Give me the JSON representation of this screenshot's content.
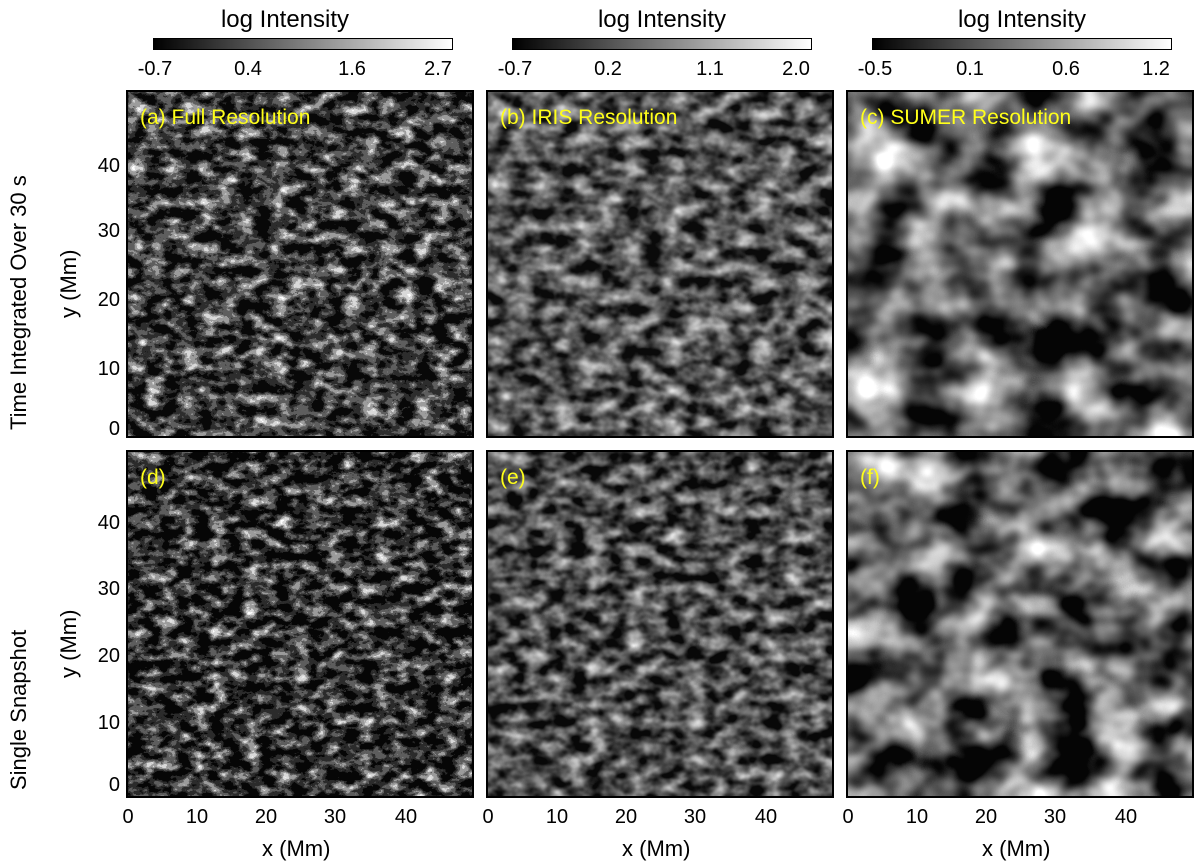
{
  "colorbars": [
    {
      "title": "log Intensity",
      "ticks": [
        "-0.7",
        "0.4",
        "1.6",
        "2.7"
      ]
    },
    {
      "title": "log Intensity",
      "ticks": [
        "-0.7",
        "0.2",
        "1.1",
        "2.0"
      ]
    },
    {
      "title": "log Intensity",
      "ticks": [
        "-0.5",
        "0.1",
        "0.6",
        "1.2"
      ]
    }
  ],
  "panels": [
    {
      "label": "(a) Full Resolution"
    },
    {
      "label": "(b) IRIS  Resolution"
    },
    {
      "label": "(c) SUMER Resolution"
    },
    {
      "label": "(d)"
    },
    {
      "label": "(e)"
    },
    {
      "label": "(f)"
    }
  ],
  "rows": [
    {
      "title": "Time Integrated Over 30 s",
      "ylabel": "y (Mm)"
    },
    {
      "title": "Single Snapshot",
      "ylabel": "y (Mm)"
    }
  ],
  "xlabel": "x (Mm)",
  "x_ticks": [
    "0",
    "10",
    "20",
    "30",
    "40"
  ],
  "y_ticks": [
    "40",
    "30",
    "20",
    "10",
    "0"
  ]
}
